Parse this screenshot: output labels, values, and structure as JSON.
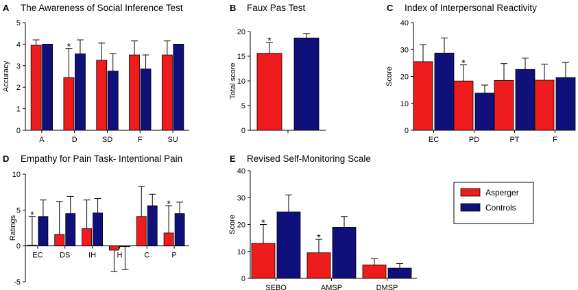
{
  "colors": {
    "asperger": "#ee1c1c",
    "controls": "#10107a"
  },
  "legend": {
    "items": [
      {
        "name": "Asperger",
        "color": "#ee1c1c"
      },
      {
        "name": "Controls",
        "color": "#10107a"
      }
    ]
  },
  "chart_data": [
    {
      "panel": "A",
      "type": "bar",
      "title": "The Awareness of Social Inference Test",
      "ylabel": "Accuracy",
      "xlabel": "",
      "ylim": [
        0,
        5
      ],
      "yticks": [
        0,
        1,
        2,
        3,
        4,
        5
      ],
      "categories": [
        "A",
        "D",
        "SD",
        "F",
        "SU"
      ],
      "series": [
        {
          "name": "Asperger",
          "values": [
            3.95,
            2.45,
            3.25,
            3.5,
            3.5
          ],
          "errors": [
            0.25,
            1.35,
            0.8,
            0.65,
            0.65
          ]
        },
        {
          "name": "Controls",
          "values": [
            4.0,
            3.55,
            2.75,
            2.85,
            4.0
          ],
          "errors": [
            0.0,
            0.65,
            0.8,
            0.65,
            0.0
          ]
        }
      ],
      "significant": [
        "D"
      ]
    },
    {
      "panel": "B",
      "type": "bar",
      "title": "Faux Pas Test",
      "ylabel": "Total score",
      "xlabel": "",
      "ylim": [
        0,
        20
      ],
      "yticks": [
        0,
        5,
        10,
        15,
        20
      ],
      "categories": [
        ""
      ],
      "series": [
        {
          "name": "Asperger",
          "values": [
            15.6
          ],
          "errors": [
            2.2
          ]
        },
        {
          "name": "Controls",
          "values": [
            18.7
          ],
          "errors": [
            0.9
          ]
        }
      ],
      "significant": [
        ""
      ]
    },
    {
      "panel": "C",
      "type": "bar",
      "title": "Index of Interpersonal Reactivity",
      "ylabel": "Score",
      "xlabel": "",
      "ylim": [
        0,
        40
      ],
      "yticks": [
        0,
        10,
        20,
        30,
        40
      ],
      "categories": [
        "EC",
        "PD",
        "PT",
        "F"
      ],
      "series": [
        {
          "name": "Asperger",
          "values": [
            25.5,
            18.3,
            18.5,
            18.6
          ],
          "errors": [
            6.3,
            6.0,
            6.3,
            6.0
          ]
        },
        {
          "name": "Controls",
          "values": [
            28.7,
            13.8,
            22.6,
            19.6
          ],
          "errors": [
            5.6,
            3.0,
            4.2,
            5.6
          ]
        }
      ],
      "significant": [
        "PD"
      ]
    },
    {
      "panel": "D",
      "type": "bar",
      "title": "Empathy for Pain Task- Intentional Pain",
      "ylabel": "Ratings",
      "xlabel": "",
      "ylim": [
        -5,
        10
      ],
      "yticks": [
        -5,
        0,
        5,
        10
      ],
      "categories": [
        "EC",
        "DS",
        "IH",
        "H",
        "C",
        "P"
      ],
      "series": [
        {
          "name": "Asperger",
          "values": [
            0.1,
            1.6,
            2.4,
            -0.6,
            4.1,
            1.8
          ],
          "errors": [
            4.0,
            4.6,
            4.0,
            3.0,
            4.2,
            3.8
          ]
        },
        {
          "name": "Controls",
          "values": [
            4.1,
            4.5,
            4.6,
            -0.1,
            5.6,
            4.5
          ],
          "errors": [
            2.3,
            2.4,
            2.0,
            3.2,
            1.6,
            1.6
          ]
        }
      ],
      "significant": [
        "EC",
        "P"
      ]
    },
    {
      "panel": "E",
      "type": "bar",
      "title": "Revised Self-Monitoring Scale",
      "ylabel": "Score",
      "xlabel": "",
      "ylim": [
        0,
        40
      ],
      "yticks": [
        0,
        10,
        20,
        30,
        40
      ],
      "categories": [
        "SEBO",
        "AMSP",
        "DMSP"
      ],
      "series": [
        {
          "name": "Asperger",
          "values": [
            13.0,
            9.5,
            5.0
          ],
          "errors": [
            7.0,
            5.0,
            2.3
          ]
        },
        {
          "name": "Controls",
          "values": [
            24.7,
            19.0,
            3.8
          ],
          "errors": [
            6.3,
            4.0,
            1.7
          ]
        }
      ],
      "significant": [
        "SEBO",
        "AMSP"
      ]
    }
  ]
}
